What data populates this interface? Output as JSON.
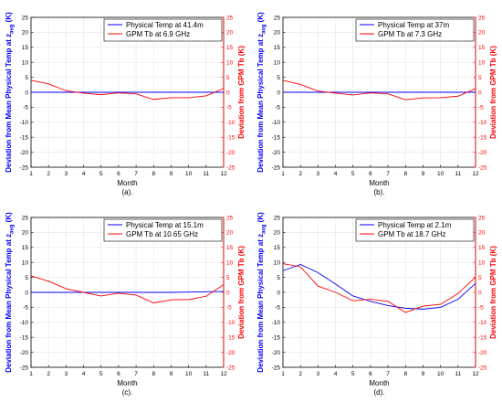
{
  "figure": {
    "colors": {
      "physical": "#0000ff",
      "gpm": "#ff0000",
      "axis": "#000000",
      "grid": "#e6e6e6"
    }
  },
  "chart_data": [
    {
      "type": "line",
      "caption": "(a).",
      "xlabel": "Month",
      "ylabel_left": "Deviation from Mean Physical Temp at z_avg (K)",
      "ylabel_left_sub": "avg",
      "ylabel_right": "Deviation from GPM Tb (K)",
      "x": [
        1,
        2,
        3,
        4,
        5,
        6,
        7,
        8,
        9,
        10,
        11,
        12
      ],
      "xticks": [
        "1",
        "2",
        "3",
        "4",
        "5",
        "6",
        "7",
        "8",
        "9",
        "10",
        "11",
        "12"
      ],
      "ylim_left": [
        -25,
        25
      ],
      "ylim_right": [
        -25,
        25
      ],
      "yticks": [
        "25",
        "20",
        "15",
        "10",
        "5",
        "0",
        "-5",
        "-10",
        "-15",
        "-20",
        "-25"
      ],
      "legend_position": "top-right",
      "grid": true,
      "series": [
        {
          "name": "Physical Temp at 41.4m",
          "axis": "left",
          "color": "#0000ff",
          "values": [
            0,
            0,
            0,
            0,
            0,
            0,
            0,
            0,
            0,
            0,
            0,
            0
          ]
        },
        {
          "name": "GPM Tb at 6.9 GHz",
          "axis": "right",
          "color": "#ff0000",
          "values": [
            4,
            2.8,
            0.5,
            -0.3,
            -0.8,
            -0.2,
            -0.5,
            -2.4,
            -1.8,
            -1.8,
            -1.2,
            1.3
          ]
        }
      ]
    },
    {
      "type": "line",
      "caption": "(b).",
      "xlabel": "Month",
      "ylabel_left": "Deviation from Mean Physical Temp at z_avg (K)",
      "ylabel_left_sub": "avg",
      "ylabel_right": "Deviation from GPM Tb (K)",
      "x": [
        1,
        2,
        3,
        4,
        5,
        6,
        7,
        8,
        9,
        10,
        11,
        12
      ],
      "xticks": [
        "1",
        "2",
        "3",
        "4",
        "5",
        "6",
        "7",
        "8",
        "9",
        "10",
        "11",
        "12"
      ],
      "ylim_left": [
        -25,
        25
      ],
      "ylim_right": [
        -25,
        25
      ],
      "yticks": [
        "25",
        "20",
        "15",
        "10",
        "5",
        "0",
        "-5",
        "-10",
        "-15",
        "-20",
        "-25"
      ],
      "legend_position": "top-right",
      "grid": true,
      "series": [
        {
          "name": "Physical Temp at 37m",
          "axis": "left",
          "color": "#0000ff",
          "values": [
            0,
            0,
            0,
            0,
            0,
            0,
            0,
            0,
            0,
            0,
            0,
            0
          ]
        },
        {
          "name": "GPM Tb at 7.3 GHz",
          "axis": "right",
          "color": "#ff0000",
          "values": [
            4,
            2.6,
            0.4,
            -0.3,
            -0.9,
            -0.2,
            -0.5,
            -2.5,
            -1.9,
            -1.8,
            -1.3,
            1.2
          ]
        }
      ]
    },
    {
      "type": "line",
      "caption": "(c).",
      "xlabel": "Month",
      "ylabel_left": "Deviation from Mean Physical Temp at z_avg (K)",
      "ylabel_left_sub": "avg",
      "ylabel_right": "Deviation from GPM Tb (K)",
      "x": [
        1,
        2,
        3,
        4,
        5,
        6,
        7,
        8,
        9,
        10,
        11,
        12
      ],
      "xticks": [
        "1",
        "2",
        "3",
        "4",
        "5",
        "6",
        "7",
        "8",
        "9",
        "10",
        "11",
        "12"
      ],
      "ylim_left": [
        -25,
        25
      ],
      "ylim_right": [
        -25,
        25
      ],
      "yticks": [
        "25",
        "20",
        "15",
        "10",
        "5",
        "0",
        "-5",
        "-10",
        "-15",
        "-20",
        "-25"
      ],
      "legend_position": "top-right",
      "grid": true,
      "series": [
        {
          "name": "Physical Temp at 15.1m",
          "axis": "left",
          "color": "#0000ff",
          "values": [
            0,
            0,
            0,
            0,
            0,
            0,
            0,
            0,
            0,
            0.1,
            0.2,
            0.3
          ]
        },
        {
          "name": "GPM Tb at 10.65 GHz",
          "axis": "right",
          "color": "#ff0000",
          "values": [
            5.5,
            3.7,
            1.2,
            0,
            -1.2,
            -0.3,
            -0.9,
            -3.5,
            -2.5,
            -2.4,
            -1.3,
            2.6
          ]
        }
      ]
    },
    {
      "type": "line",
      "caption": "(d).",
      "xlabel": "Month",
      "ylabel_left": "Deviation from Mean Physical Temp at z_avg (K)",
      "ylabel_left_sub": "avg",
      "ylabel_right": "Deviation from GPM Tb (K)",
      "x": [
        1,
        2,
        3,
        4,
        5,
        6,
        7,
        8,
        9,
        10,
        11,
        12
      ],
      "xticks": [
        "1",
        "2",
        "3",
        "4",
        "5",
        "6",
        "7",
        "8",
        "9",
        "10",
        "11",
        "12"
      ],
      "ylim_left": [
        -25,
        25
      ],
      "ylim_right": [
        -25,
        25
      ],
      "yticks": [
        "25",
        "20",
        "15",
        "10",
        "5",
        "0",
        "-5",
        "-10",
        "-15",
        "-20",
        "-25"
      ],
      "legend_position": "top-right",
      "grid": true,
      "series": [
        {
          "name": "Physical Temp at 2.1m",
          "axis": "left",
          "color": "#0000ff",
          "values": [
            7.2,
            9.3,
            6.6,
            2.8,
            -1.2,
            -3,
            -4.4,
            -5.3,
            -5.6,
            -5,
            -2.3,
            3
          ]
        },
        {
          "name": "GPM Tb at 18.7 GHz",
          "axis": "right",
          "color": "#ff0000",
          "values": [
            9.6,
            8.5,
            2.1,
            0,
            -2.8,
            -2.3,
            -3,
            -6.7,
            -4.6,
            -4,
            -0.4,
            5.1
          ]
        }
      ]
    }
  ]
}
